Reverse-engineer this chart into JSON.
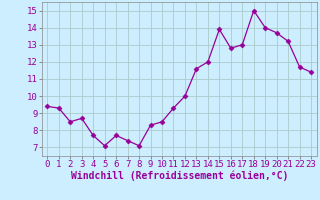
{
  "x": [
    0,
    1,
    2,
    3,
    4,
    5,
    6,
    7,
    8,
    9,
    10,
    11,
    12,
    13,
    14,
    15,
    16,
    17,
    18,
    19,
    20,
    21,
    22,
    23
  ],
  "y": [
    9.4,
    9.3,
    8.5,
    8.7,
    7.7,
    7.1,
    7.7,
    7.4,
    7.1,
    8.3,
    8.5,
    9.3,
    10.0,
    11.6,
    12.0,
    13.9,
    12.8,
    13.0,
    15.0,
    14.0,
    13.7,
    13.2,
    11.7,
    11.4
  ],
  "line_color": "#990099",
  "marker": "D",
  "marker_size": 2.5,
  "bg_color": "#cceeff",
  "grid_color": "#aacccc",
  "xlabel": "Windchill (Refroidissement éolien,°C)",
  "xlabel_fontsize": 7,
  "tick_fontsize": 6.5,
  "xlim": [
    -0.5,
    23.5
  ],
  "ylim": [
    6.5,
    15.5
  ],
  "yticks": [
    7,
    8,
    9,
    10,
    11,
    12,
    13,
    14,
    15
  ],
  "xticks": [
    0,
    1,
    2,
    3,
    4,
    5,
    6,
    7,
    8,
    9,
    10,
    11,
    12,
    13,
    14,
    15,
    16,
    17,
    18,
    19,
    20,
    21,
    22,
    23
  ]
}
